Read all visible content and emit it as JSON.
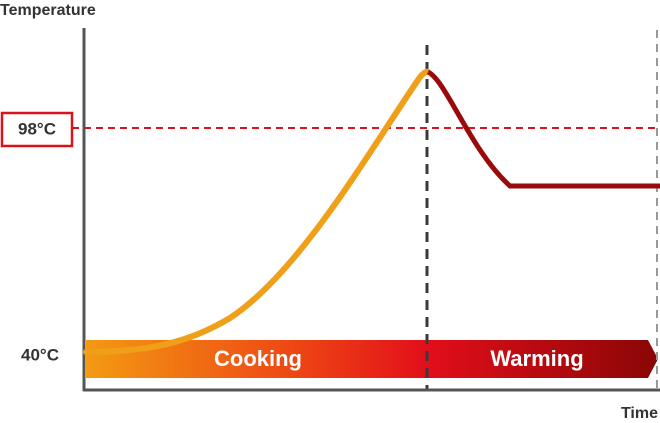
{
  "axes": {
    "y_label": "Temperature",
    "x_label": "Time"
  },
  "levels": [
    {
      "label": "98°C"
    },
    {
      "label": "40°C"
    }
  ],
  "phases": [
    {
      "label": "Cooking"
    },
    {
      "label": "Warming"
    }
  ]
}
